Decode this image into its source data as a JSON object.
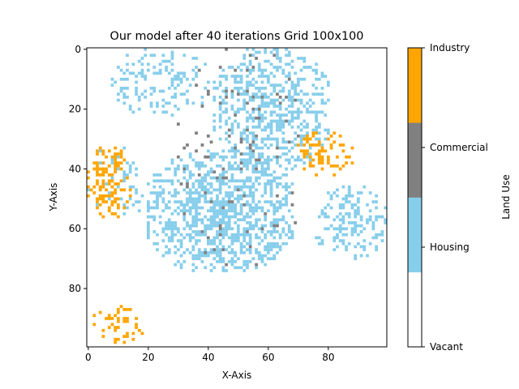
{
  "chart_data": {
    "type": "heatmap",
    "title": "Our model after 40 iterations Grid 100x100",
    "xlabel": "X-Axis",
    "ylabel": "Y-Axis",
    "grid_size": [
      100,
      100
    ],
    "x_ticks": [
      0,
      20,
      40,
      60,
      80
    ],
    "y_ticks": [
      0,
      20,
      40,
      60,
      80
    ],
    "y_inverted": true,
    "colorbar": {
      "label": "Land Use",
      "categories": [
        {
          "name": "Vacant",
          "color": "#ffffff"
        },
        {
          "name": "Housing",
          "color": "#87ceeb"
        },
        {
          "name": "Commercial",
          "color": "#808080"
        },
        {
          "name": "Industry",
          "color": "#ffa500"
        }
      ]
    },
    "clusters": [
      {
        "category": "Housing",
        "x_range": [
          20,
          68
        ],
        "y_range": [
          34,
          74
        ],
        "density": 0.72
      },
      {
        "category": "Housing",
        "x_range": [
          42,
          80
        ],
        "y_range": [
          0,
          40
        ],
        "density": 0.6
      },
      {
        "category": "Housing",
        "x_range": [
          76,
          99
        ],
        "y_range": [
          46,
          70
        ],
        "density": 0.45
      },
      {
        "category": "Housing",
        "x_range": [
          8,
          40
        ],
        "y_range": [
          0,
          22
        ],
        "density": 0.3
      },
      {
        "category": "Housing",
        "x_range": [
          0,
          20
        ],
        "y_range": [
          33,
          56
        ],
        "density": 0.15
      },
      {
        "category": "Industry",
        "x_range": [
          0,
          14
        ],
        "y_range": [
          33,
          56
        ],
        "density": 0.55
      },
      {
        "category": "Industry",
        "x_range": [
          70,
          88
        ],
        "y_range": [
          28,
          42
        ],
        "density": 0.45
      },
      {
        "category": "Industry",
        "x_range": [
          1,
          20
        ],
        "y_range": [
          86,
          98
        ],
        "density": 0.25
      },
      {
        "category": "Commercial",
        "x_range": [
          30,
          72
        ],
        "y_range": [
          0,
          72
        ],
        "density": 0.06
      }
    ]
  }
}
